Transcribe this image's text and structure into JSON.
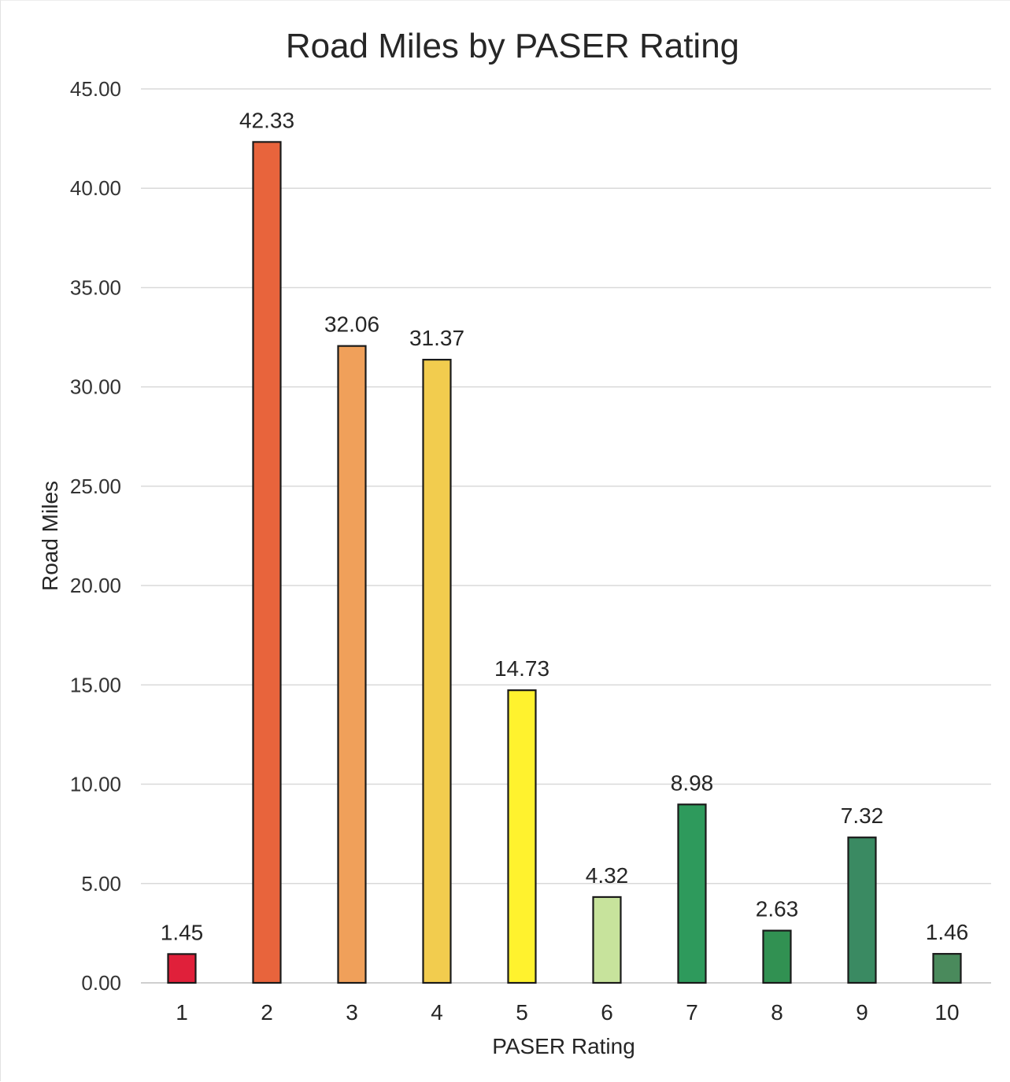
{
  "chart_data": {
    "type": "bar",
    "title": "Road Miles by PASER Rating",
    "xlabel": "PASER Rating",
    "ylabel": "Road Miles",
    "categories": [
      "1",
      "2",
      "3",
      "4",
      "5",
      "6",
      "7",
      "8",
      "9",
      "10"
    ],
    "values": [
      1.45,
      42.33,
      32.06,
      31.37,
      14.73,
      4.32,
      8.98,
      2.63,
      7.32,
      1.46
    ],
    "value_labels": [
      "1.45",
      "42.33",
      "32.06",
      "31.37",
      "14.73",
      "4.32",
      "8.98",
      "2.63",
      "7.32",
      "1.46"
    ],
    "bar_colors": [
      "#e0203a",
      "#e8643c",
      "#f0a05a",
      "#f2cc4e",
      "#fff22e",
      "#c7e39c",
      "#2e9a5c",
      "#319152",
      "#3a8a62",
      "#4a8a5c"
    ],
    "ylim": [
      0,
      45
    ],
    "yticks": [
      0,
      5,
      10,
      15,
      20,
      25,
      30,
      35,
      40,
      45
    ],
    "ytick_labels": [
      "0.00",
      "5.00",
      "10.00",
      "15.00",
      "20.00",
      "25.00",
      "30.00",
      "35.00",
      "40.00",
      "45.00"
    ],
    "grid": true,
    "legend": "none"
  }
}
